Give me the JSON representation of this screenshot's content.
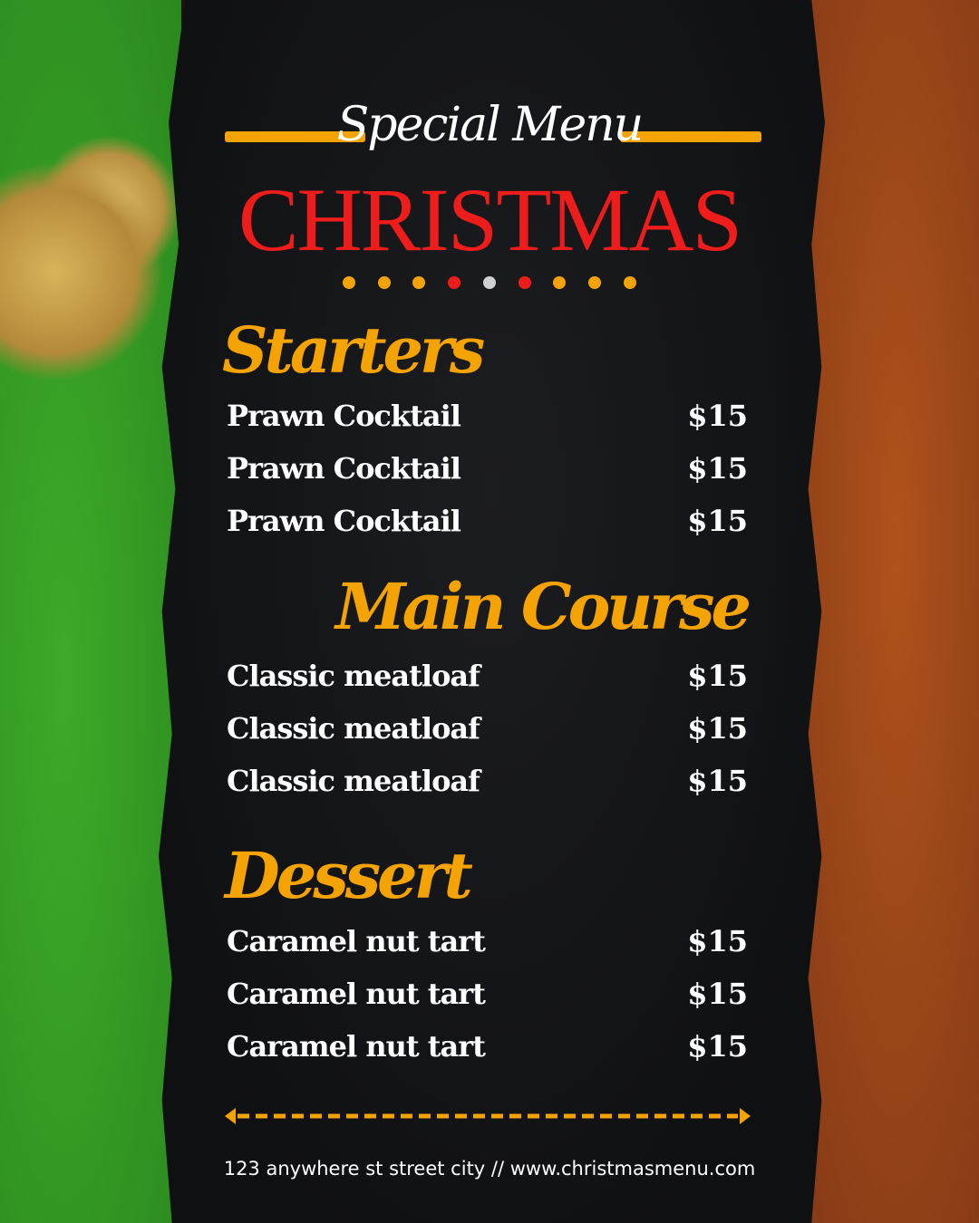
{
  "header": {
    "subtitle": "Special Menu",
    "title": "CHRISTMAS"
  },
  "dots": [
    "#f5a300",
    "#f5a300",
    "#f5a300",
    "#ef1c1c",
    "#d0d0d0",
    "#ef1c1c",
    "#f5a300",
    "#f5a300",
    "#f5a300"
  ],
  "colors": {
    "accent": "#f5a300",
    "title": "#ef1c1c",
    "panel": "#111214"
  },
  "sections": [
    {
      "title": "Starters",
      "items": [
        {
          "name": "Prawn Cocktail",
          "price": "$15"
        },
        {
          "name": "Prawn Cocktail",
          "price": "$15"
        },
        {
          "name": "Prawn Cocktail",
          "price": "$15"
        }
      ]
    },
    {
      "title": "Main Course",
      "items": [
        {
          "name": "Classic meatloaf",
          "price": "$15"
        },
        {
          "name": "Classic meatloaf",
          "price": "$15"
        },
        {
          "name": "Classic meatloaf",
          "price": "$15"
        }
      ]
    },
    {
      "title": "Dessert",
      "items": [
        {
          "name": "Caramel nut tart",
          "price": "$15"
        },
        {
          "name": "Caramel nut tart",
          "price": "$15"
        },
        {
          "name": "Caramel nut tart",
          "price": "$15"
        }
      ]
    }
  ],
  "footer": {
    "text": "123 anywhere st street city  //  www.christmasmenu.com"
  }
}
